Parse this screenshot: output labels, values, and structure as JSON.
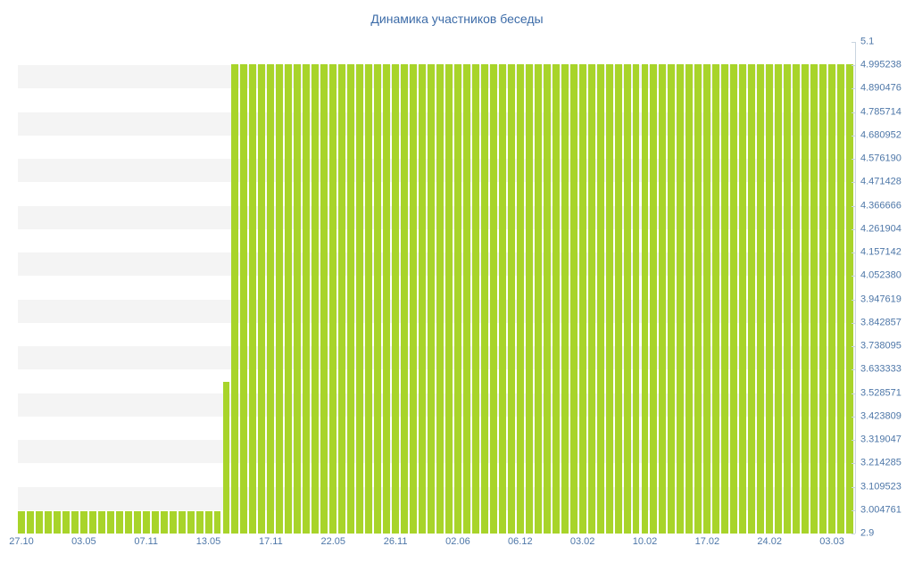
{
  "chart_data": {
    "type": "bar",
    "title": "Динамика участников беседы",
    "xlabel": "",
    "ylabel": "",
    "ylim": [
      2.9,
      5.1
    ],
    "grid": "horizontal-stripes",
    "legend_position": "none",
    "y_ticks": [
      "5.1",
      "4.995238",
      "4.890476",
      "4.785714",
      "4.680952",
      "4.576190",
      "4.471428",
      "4.366666",
      "4.261904",
      "4.157142",
      "4.052380",
      "3.947619",
      "3.842857",
      "3.738095",
      "3.633333",
      "3.528571",
      "3.423809",
      "3.319047",
      "3.214285",
      "3.109523",
      "3.004761",
      "2.9"
    ],
    "x_tick_labels": [
      "27.10",
      "03.05",
      "07.11",
      "13.05",
      "17.11",
      "22.05",
      "26.11",
      "02.06",
      "06.12",
      "03.02",
      "10.02",
      "17.02",
      "24.02",
      "03.03"
    ],
    "x_label_step": 7,
    "values": [
      3,
      3,
      3,
      3,
      3,
      3,
      3,
      3,
      3,
      3,
      3,
      3,
      3,
      3,
      3,
      3,
      3,
      3,
      3,
      3,
      3,
      3,
      3,
      3.58,
      5,
      5,
      5,
      5,
      5,
      5,
      5,
      5,
      5,
      5,
      5,
      5,
      5,
      5,
      5,
      5,
      5,
      5,
      5,
      5,
      5,
      5,
      5,
      5,
      5,
      5,
      5,
      5,
      5,
      5,
      5,
      5,
      5,
      5,
      5,
      5,
      5,
      5,
      5,
      5,
      5,
      5,
      5,
      5,
      5,
      5,
      5,
      5,
      5,
      5,
      5,
      5,
      5,
      5,
      5,
      5,
      5,
      5,
      5,
      5,
      5,
      5,
      5,
      5,
      5,
      5,
      5,
      5,
      5,
      5
    ],
    "colors": {
      "bar": "#a8d42a",
      "title": "#3d6ca8",
      "tick": "#4e77a8",
      "stripe": "#f4f4f4",
      "axis_line": "#c9d4e0"
    }
  }
}
